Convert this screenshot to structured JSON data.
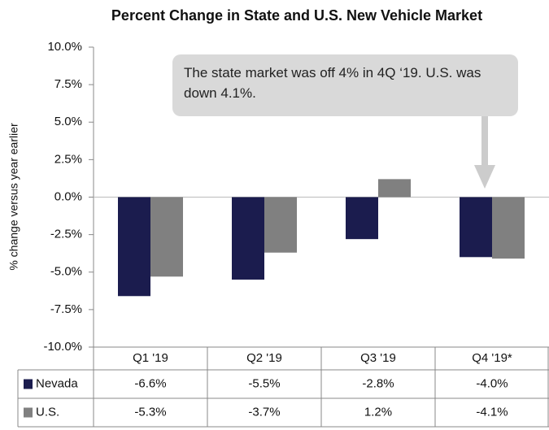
{
  "chart_data": {
    "type": "bar",
    "title": "Percent Change in State and U.S. New Vehicle Market",
    "y_label": "% change versus year earlier",
    "annotation": "The state market was off 4% in 4Q ‘19. U.S. was down 4.1%.",
    "categories": [
      "Q1 '19",
      "Q2 '19",
      "Q3 '19",
      "Q4 '19*"
    ],
    "series": [
      {
        "name": "Nevada",
        "color": "#1b1c4e",
        "values": [
          -6.6,
          -5.5,
          -2.8,
          -4.0
        ],
        "value_labels": [
          "-6.6%",
          "-5.5%",
          "-2.8%",
          "-4.0%"
        ]
      },
      {
        "name": "U.S.",
        "color": "#808080",
        "values": [
          -5.3,
          -3.7,
          1.2,
          -4.1
        ],
        "value_labels": [
          "-5.3%",
          "-3.7%",
          "1.2%",
          "-4.1%"
        ]
      }
    ],
    "ylim": [
      -10,
      10
    ],
    "yticks": [
      {
        "value": -10,
        "label": "-10.0%"
      },
      {
        "value": -7.5,
        "label": "-7.5%"
      },
      {
        "value": -5,
        "label": "-5.0%"
      },
      {
        "value": -2.5,
        "label": "-2.5%"
      },
      {
        "value": 0,
        "label": "0.0%"
      },
      {
        "value": 2.5,
        "label": "2.5%"
      },
      {
        "value": 5,
        "label": "5.0%"
      },
      {
        "value": 7.5,
        "label": "7.5%"
      },
      {
        "value": 10,
        "label": "10.0%"
      }
    ]
  }
}
